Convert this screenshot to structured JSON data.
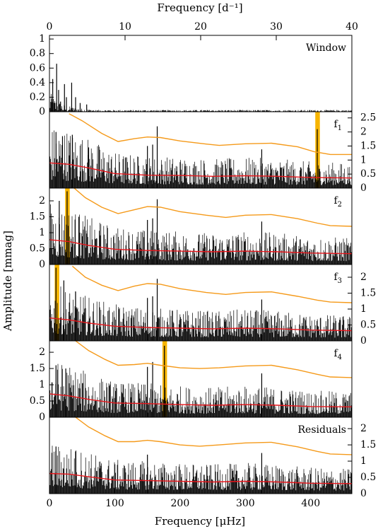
{
  "chart_data": {
    "type": "line",
    "xlabel": "Frequency [μHz]",
    "x2label": "Frequency [d⁻¹]",
    "ylabel": "Amplitude [mmag]",
    "xlim": [
      0,
      463
    ],
    "x2lim": [
      0,
      40
    ],
    "xticks": [
      "0",
      "100",
      "200",
      "300",
      "400"
    ],
    "x2ticks": [
      "0",
      "10",
      "20",
      "30",
      "40"
    ],
    "colors": {
      "spectrum": "#000000",
      "noise": "#e8151b",
      "threshold": "#f59a1a",
      "highlight": "#f7b500"
    },
    "panels": [
      {
        "label": "Window",
        "ylim": [
          0,
          1.05
        ],
        "yticks": [
          "0",
          "0.2",
          "0.4",
          "0.6",
          "0.8",
          "1"
        ],
        "ytick_side": "left",
        "noise_points": [],
        "threshold_points": [],
        "peaks": [],
        "highlight": null,
        "window_peaks": [
          [
            3,
            0.18
          ],
          [
            5,
            0.45
          ],
          [
            8,
            0.12
          ],
          [
            11,
            0.66
          ],
          [
            14,
            0.3
          ],
          [
            17,
            0.14
          ],
          [
            23,
            0.38
          ],
          [
            26,
            0.2
          ],
          [
            34,
            0.4
          ],
          [
            40,
            0.2
          ],
          [
            47,
            0.12
          ],
          [
            57,
            0.1
          ]
        ]
      },
      {
        "label": "f",
        "label_sub": "1",
        "ylim": [
          0,
          2.72
        ],
        "yticks": [
          "0",
          "0.5",
          "1",
          "1.5",
          "2",
          "2.5"
        ],
        "ytick_side": "right",
        "noise_points": [
          [
            0,
            0.9
          ],
          [
            30,
            0.85
          ],
          [
            60,
            0.72
          ],
          [
            100,
            0.52
          ],
          [
            150,
            0.46
          ],
          [
            200,
            0.45
          ],
          [
            250,
            0.42
          ],
          [
            300,
            0.44
          ],
          [
            350,
            0.42
          ],
          [
            400,
            0.38
          ],
          [
            463,
            0.36
          ]
        ],
        "threshold_points": [
          [
            30,
            2.65
          ],
          [
            50,
            2.4
          ],
          [
            80,
            1.95
          ],
          [
            105,
            1.66
          ],
          [
            130,
            1.76
          ],
          [
            150,
            1.82
          ],
          [
            170,
            1.8
          ],
          [
            200,
            1.68
          ],
          [
            240,
            1.57
          ],
          [
            260,
            1.52
          ],
          [
            300,
            1.58
          ],
          [
            340,
            1.6
          ],
          [
            380,
            1.47
          ],
          [
            405,
            1.3
          ],
          [
            430,
            1.2
          ],
          [
            463,
            1.2
          ]
        ],
        "peaks": [
          [
            10,
            2.0
          ],
          [
            20,
            1.85
          ],
          [
            35,
            1.9
          ],
          [
            60,
            1.45
          ],
          [
            150,
            1.5
          ],
          [
            158,
            1.55
          ],
          [
            165,
            2.2
          ],
          [
            325,
            1.38
          ],
          [
            410,
            2.1
          ]
        ],
        "highlight": [
          407,
          414
        ]
      },
      {
        "label": "f",
        "label_sub": "2",
        "ylim": [
          0,
          2.4
        ],
        "yticks": [
          "0",
          "0.5",
          "1",
          "1.5",
          "2"
        ],
        "ytick_side": "left",
        "noise_points": [
          [
            0,
            0.78
          ],
          [
            30,
            0.72
          ],
          [
            60,
            0.6
          ],
          [
            100,
            0.48
          ],
          [
            150,
            0.44
          ],
          [
            200,
            0.42
          ],
          [
            250,
            0.4
          ],
          [
            300,
            0.42
          ],
          [
            350,
            0.4
          ],
          [
            400,
            0.36
          ],
          [
            463,
            0.34
          ]
        ],
        "threshold_points": [
          [
            35,
            2.45
          ],
          [
            55,
            2.1
          ],
          [
            80,
            1.8
          ],
          [
            105,
            1.6
          ],
          [
            130,
            1.72
          ],
          [
            150,
            1.82
          ],
          [
            170,
            1.8
          ],
          [
            200,
            1.66
          ],
          [
            240,
            1.55
          ],
          [
            270,
            1.48
          ],
          [
            300,
            1.55
          ],
          [
            340,
            1.57
          ],
          [
            380,
            1.44
          ],
          [
            410,
            1.3
          ],
          [
            430,
            1.22
          ],
          [
            463,
            1.2
          ]
        ],
        "peaks": [
          [
            15,
            2.0
          ],
          [
            27,
            2.3
          ],
          [
            45,
            1.5
          ],
          [
            150,
            1.4
          ],
          [
            158,
            1.45
          ],
          [
            165,
            2.05
          ],
          [
            325,
            1.35
          ]
        ],
        "highlight": [
          24,
          31
        ]
      },
      {
        "label": "f",
        "label_sub": "3",
        "ylim": [
          0,
          2.4
        ],
        "yticks": [
          "0",
          "0.5",
          "1",
          "1.5",
          "2"
        ],
        "ytick_side": "right",
        "noise_points": [
          [
            0,
            0.72
          ],
          [
            30,
            0.66
          ],
          [
            60,
            0.56
          ],
          [
            100,
            0.46
          ],
          [
            150,
            0.42
          ],
          [
            200,
            0.4
          ],
          [
            250,
            0.38
          ],
          [
            300,
            0.4
          ],
          [
            350,
            0.38
          ],
          [
            400,
            0.34
          ],
          [
            463,
            0.32
          ]
        ],
        "threshold_points": [
          [
            35,
            2.35
          ],
          [
            55,
            2.0
          ],
          [
            80,
            1.75
          ],
          [
            105,
            1.58
          ],
          [
            130,
            1.72
          ],
          [
            150,
            1.8
          ],
          [
            170,
            1.78
          ],
          [
            200,
            1.64
          ],
          [
            240,
            1.52
          ],
          [
            270,
            1.46
          ],
          [
            300,
            1.52
          ],
          [
            340,
            1.54
          ],
          [
            380,
            1.4
          ],
          [
            410,
            1.28
          ],
          [
            430,
            1.22
          ],
          [
            463,
            1.2
          ]
        ],
        "peaks": [
          [
            10,
            2.3
          ],
          [
            22,
            1.9
          ],
          [
            40,
            1.55
          ],
          [
            150,
            1.35
          ],
          [
            158,
            1.4
          ],
          [
            165,
            1.95
          ],
          [
            325,
            1.3
          ]
        ],
        "highlight": [
          8,
          15
        ]
      },
      {
        "label": "f",
        "label_sub": "4",
        "ylim": [
          0,
          2.35
        ],
        "yticks": [
          "0",
          "0.5",
          "1",
          "1.5",
          "2"
        ],
        "ytick_side": "left",
        "noise_points": [
          [
            0,
            0.72
          ],
          [
            30,
            0.66
          ],
          [
            60,
            0.55
          ],
          [
            100,
            0.44
          ],
          [
            150,
            0.42
          ],
          [
            200,
            0.39
          ],
          [
            250,
            0.37
          ],
          [
            300,
            0.39
          ],
          [
            350,
            0.37
          ],
          [
            400,
            0.33
          ],
          [
            463,
            0.32
          ]
        ],
        "threshold_points": [
          [
            40,
            2.35
          ],
          [
            60,
            2.05
          ],
          [
            85,
            1.78
          ],
          [
            105,
            1.6
          ],
          [
            130,
            1.62
          ],
          [
            150,
            1.66
          ],
          [
            170,
            1.6
          ],
          [
            200,
            1.52
          ],
          [
            230,
            1.5
          ],
          [
            260,
            1.52
          ],
          [
            300,
            1.58
          ],
          [
            340,
            1.6
          ],
          [
            380,
            1.46
          ],
          [
            410,
            1.32
          ],
          [
            430,
            1.24
          ],
          [
            463,
            1.22
          ]
        ],
        "peaks": [
          [
            10,
            1.6
          ],
          [
            25,
            1.5
          ],
          [
            150,
            1.55
          ],
          [
            158,
            1.7
          ],
          [
            176,
            2.2
          ],
          [
            325,
            1.35
          ]
        ],
        "highlight": [
          173,
          180
        ]
      },
      {
        "label": "Residuals",
        "label_sub": "",
        "ylim": [
          0,
          2.35
        ],
        "yticks": [
          "0",
          "0.5",
          "1",
          "1.5",
          "2"
        ],
        "ytick_side": "right",
        "noise_points": [
          [
            0,
            0.62
          ],
          [
            30,
            0.6
          ],
          [
            60,
            0.52
          ],
          [
            100,
            0.42
          ],
          [
            150,
            0.4
          ],
          [
            200,
            0.38
          ],
          [
            250,
            0.36
          ],
          [
            300,
            0.38
          ],
          [
            350,
            0.36
          ],
          [
            400,
            0.32
          ],
          [
            463,
            0.31
          ]
        ],
        "threshold_points": [
          [
            40,
            2.35
          ],
          [
            60,
            2.05
          ],
          [
            85,
            1.78
          ],
          [
            105,
            1.6
          ],
          [
            130,
            1.6
          ],
          [
            150,
            1.64
          ],
          [
            170,
            1.6
          ],
          [
            200,
            1.5
          ],
          [
            230,
            1.46
          ],
          [
            260,
            1.5
          ],
          [
            300,
            1.56
          ],
          [
            340,
            1.58
          ],
          [
            380,
            1.44
          ],
          [
            410,
            1.3
          ],
          [
            430,
            1.22
          ],
          [
            463,
            1.2
          ]
        ],
        "peaks": [
          [
            10,
            1.45
          ],
          [
            40,
            1.3
          ],
          [
            150,
            1.2
          ],
          [
            325,
            1.25
          ]
        ],
        "highlight": null
      }
    ]
  }
}
